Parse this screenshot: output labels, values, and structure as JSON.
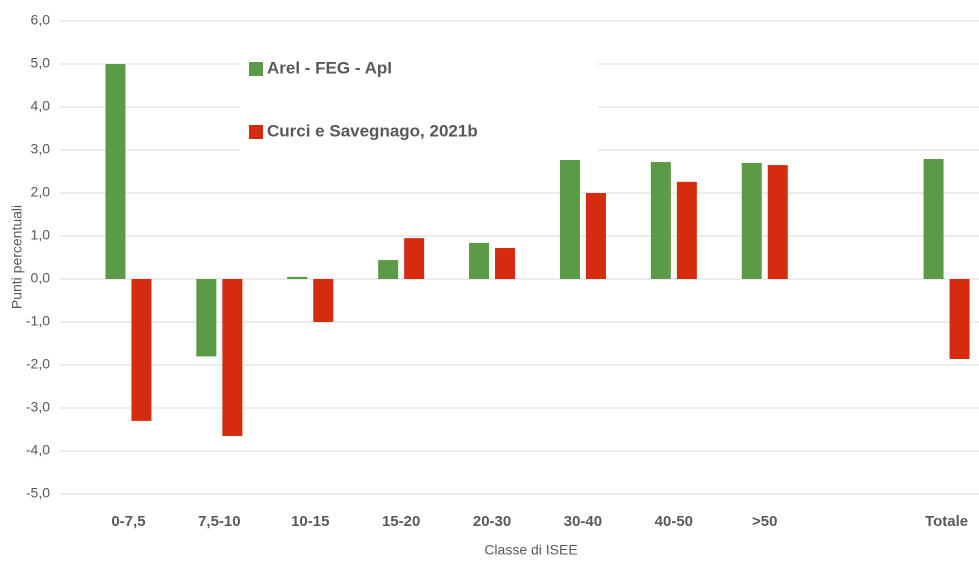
{
  "chart_data": {
    "type": "bar",
    "x_label": "Classe di ISEE",
    "y_label": "Punti percentuali",
    "categories": [
      "0-7,5",
      "7,5-10",
      "10-15",
      "15-20",
      "20-30",
      "30-40",
      "40-50",
      ">50",
      null,
      "Totale"
    ],
    "series": [
      {
        "name": "Arel - FEG - ApI",
        "color": "#5b9a46",
        "values": [
          5.0,
          -1.8,
          0.05,
          0.44,
          0.84,
          2.77,
          2.72,
          2.7,
          null,
          2.79
        ]
      },
      {
        "name": "Curci e Savegnago, 2021b",
        "color": "#d52b0e",
        "values": [
          -3.3,
          -3.65,
          -1.0,
          0.95,
          0.72,
          2.0,
          2.26,
          2.65,
          null,
          -1.86
        ]
      }
    ],
    "ylim": [
      -5,
      6
    ],
    "yticks": [
      {
        "value": -5,
        "label": "-5,0"
      },
      {
        "value": -4,
        "label": "-4,0"
      },
      {
        "value": -3,
        "label": "-3,0"
      },
      {
        "value": -2,
        "label": "-2,0"
      },
      {
        "value": -1,
        "label": "-1,0"
      },
      {
        "value": 0,
        "label": "0,0"
      },
      {
        "value": 1,
        "label": "1,0"
      },
      {
        "value": 2,
        "label": "2,0"
      },
      {
        "value": 3,
        "label": "3,0"
      },
      {
        "value": 4,
        "label": "4,0"
      },
      {
        "value": 5,
        "label": "5,0"
      },
      {
        "value": 6,
        "label": "6,0"
      }
    ],
    "grid": true
  }
}
